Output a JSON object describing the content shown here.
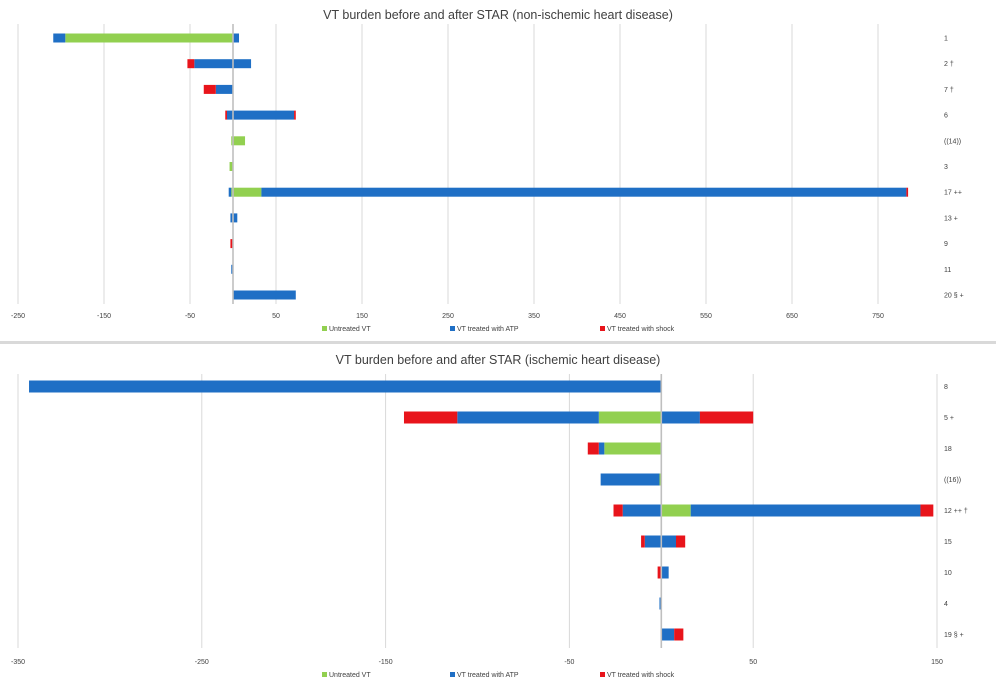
{
  "colors": {
    "untreated": "#92d050",
    "atp": "#1f6fc5",
    "shock": "#e8141b",
    "grid": "#d9d9d9",
    "zero_line": "#bfbfbf",
    "text": "#404040"
  },
  "chart_data": [
    {
      "type": "bar",
      "orientation": "horizontal",
      "stacked": true,
      "title": "VT burden before and after STAR (non-ischemic heart disease)",
      "xlim": [
        -250,
        800
      ],
      "xticks": [
        "-250",
        "-150",
        "-50",
        "50",
        "150",
        "250",
        "350",
        "450",
        "550",
        "650",
        "750"
      ],
      "grid": true,
      "legend": "bottom",
      "categories": [
        "1",
        "2 †",
        "7 †",
        "6",
        "((14))",
        "3",
        "17 ++",
        "13 +",
        "9",
        "11",
        "20 § +"
      ],
      "series": [
        {
          "name": "Untreated VT",
          "color_key": "untreated",
          "values": [
            [
              -195,
              0
            ],
            [
              0,
              0
            ],
            [
              0,
              0
            ],
            [
              0,
              0
            ],
            [
              -2,
              14
            ],
            [
              -4,
              0
            ],
            [
              -2,
              33
            ],
            [
              0,
              0
            ],
            [
              0,
              0
            ],
            [
              0,
              0
            ],
            [
              0,
              0
            ]
          ]
        },
        {
          "name": "VT treated with ATP",
          "color_key": "atp",
          "values": [
            [
              -14,
              7
            ],
            [
              -45,
              21
            ],
            [
              -20,
              0
            ],
            [
              -7,
              71
            ],
            [
              0,
              0
            ],
            [
              0,
              0
            ],
            [
              -3,
              750
            ],
            [
              -3,
              5
            ],
            [
              0,
              0
            ],
            [
              -2,
              0
            ],
            [
              0,
              73
            ]
          ]
        },
        {
          "name": "VT treated with shock",
          "color_key": "shock",
          "values": [
            [
              0,
              0
            ],
            [
              -8,
              0
            ],
            [
              -14,
              0
            ],
            [
              -2,
              2
            ],
            [
              0,
              0
            ],
            [
              0,
              0
            ],
            [
              0,
              2
            ],
            [
              0,
              0
            ],
            [
              -3,
              0
            ],
            [
              0,
              0
            ],
            [
              0,
              0
            ]
          ]
        }
      ]
    },
    {
      "type": "bar",
      "orientation": "horizontal",
      "stacked": true,
      "title": "VT burden before and after STAR (ischemic heart disease)",
      "xlim": [
        -350,
        150
      ],
      "xticks": [
        "-350",
        "-250",
        "-150",
        "-50",
        "50",
        "150"
      ],
      "grid": true,
      "legend": "bottom",
      "categories": [
        "8",
        "5 +",
        "18",
        "((16))",
        "12 ++ †",
        "15",
        "10",
        "4",
        "19 § +"
      ],
      "series": [
        {
          "name": "Untreated VT",
          "color_key": "untreated",
          "values": [
            [
              0,
              0
            ],
            [
              -34,
              0
            ],
            [
              -31,
              0
            ],
            [
              -1,
              0
            ],
            [
              0,
              16
            ],
            [
              0,
              0
            ],
            [
              0,
              0
            ],
            [
              0,
              0
            ],
            [
              0,
              0
            ]
          ]
        },
        {
          "name": "VT treated with ATP",
          "color_key": "atp",
          "values": [
            [
              -344,
              0
            ],
            [
              -77,
              21
            ],
            [
              -3,
              0
            ],
            [
              -32,
              0
            ],
            [
              -21,
              125
            ],
            [
              -9,
              8
            ],
            [
              0,
              4
            ],
            [
              -1,
              0
            ],
            [
              0,
              7
            ]
          ]
        },
        {
          "name": "VT treated with shock",
          "color_key": "shock",
          "values": [
            [
              0,
              0
            ],
            [
              -29,
              29
            ],
            [
              -6,
              0
            ],
            [
              0,
              0
            ],
            [
              -5,
              7
            ],
            [
              -2,
              5
            ],
            [
              -2,
              0
            ],
            [
              0,
              0
            ],
            [
              0,
              5
            ]
          ]
        }
      ]
    }
  ]
}
